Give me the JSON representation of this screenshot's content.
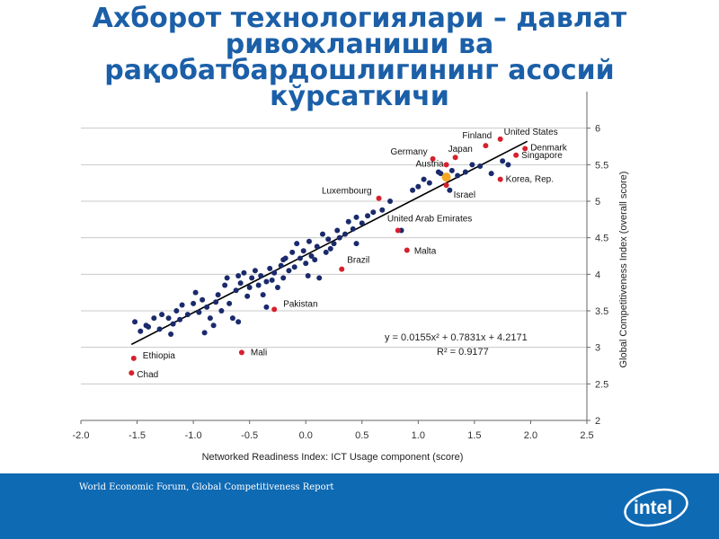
{
  "slide": {
    "title": "Ахборот технологиялари – давлат ривожланиши ва рақобатбардошлигининг асосий кўрсаткичи",
    "source": "World Economic Forum, Global Competitiveness Report",
    "logo_text": "intel"
  },
  "colors": {
    "title": "#1b5fa8",
    "footer": "#0f6ab4",
    "dot": "#1a2a6c",
    "labeled_dot": "#d6202e",
    "highlight_dot": "#f5a623",
    "trendline": "#000000"
  },
  "chart_data": {
    "type": "scatter",
    "xlabel": "Networked Readiness Index: ICT Usage component (score)",
    "ylabel": "Global Competitiveness Index (overall score)",
    "xlim": [
      -2.0,
      2.5
    ],
    "ylim": [
      2,
      6.5
    ],
    "xticks": [
      "-2.0",
      "-1.5",
      "-1.0",
      "-0.5",
      "0.0",
      "0.5",
      "1.0",
      "1.5",
      "2.0",
      "2.5"
    ],
    "yticks": [
      "2",
      "2.5",
      "3",
      "3.5",
      "4",
      "4.5",
      "5",
      "5.5",
      "6"
    ],
    "grid": "horizontal",
    "y_axis_side": "right",
    "equation": "y = 0.0155x² + 0.7831x + 4.2171",
    "r_squared": "R² = 0.9177",
    "trend": {
      "a": 0.0155,
      "b": 0.7831,
      "c": 4.2171,
      "x_range": [
        -1.55,
        1.97
      ]
    },
    "labeled_points": [
      {
        "label": "United States",
        "x": 1.73,
        "y": 5.85
      },
      {
        "label": "Finland",
        "x": 1.6,
        "y": 5.76
      },
      {
        "label": "Denmark",
        "x": 1.95,
        "y": 5.72
      },
      {
        "label": "Germany",
        "x": 1.13,
        "y": 5.58
      },
      {
        "label": "Japan",
        "x": 1.33,
        "y": 5.6
      },
      {
        "label": "Austria",
        "x": 1.25,
        "y": 5.5
      },
      {
        "label": "Singapore",
        "x": 1.87,
        "y": 5.63
      },
      {
        "label": "Korea, Rep.",
        "x": 1.73,
        "y": 5.3
      },
      {
        "label": "Israel",
        "x": 1.25,
        "y": 5.22
      },
      {
        "label": "Luxembourg",
        "x": 0.65,
        "y": 5.04
      },
      {
        "label": "United Arab Emirates",
        "x": 0.82,
        "y": 4.6
      },
      {
        "label": "Malta",
        "x": 0.9,
        "y": 4.33
      },
      {
        "label": "Brazil",
        "x": 0.32,
        "y": 4.07
      },
      {
        "label": "Pakistan",
        "x": -0.28,
        "y": 3.52
      },
      {
        "label": "Mali",
        "x": -0.57,
        "y": 2.93
      },
      {
        "label": "Ethiopia",
        "x": -1.53,
        "y": 2.85
      },
      {
        "label": "Chad",
        "x": -1.55,
        "y": 2.65
      }
    ],
    "highlight_point": {
      "x": 1.25,
      "y": 5.33
    },
    "points": [
      [
        -1.52,
        3.35
      ],
      [
        -1.47,
        3.22
      ],
      [
        -1.42,
        3.3
      ],
      [
        -1.35,
        3.4
      ],
      [
        -1.3,
        3.25
      ],
      [
        -1.28,
        3.45
      ],
      [
        -1.22,
        3.4
      ],
      [
        -1.18,
        3.32
      ],
      [
        -1.15,
        3.5
      ],
      [
        -1.12,
        3.38
      ],
      [
        -1.1,
        3.58
      ],
      [
        -1.05,
        3.45
      ],
      [
        -1.0,
        3.6
      ],
      [
        -0.98,
        3.75
      ],
      [
        -0.95,
        3.48
      ],
      [
        -0.92,
        3.65
      ],
      [
        -0.88,
        3.55
      ],
      [
        -0.85,
        3.4
      ],
      [
        -0.82,
        3.3
      ],
      [
        -0.8,
        3.62
      ],
      [
        -0.78,
        3.72
      ],
      [
        -0.75,
        3.5
      ],
      [
        -0.72,
        3.85
      ],
      [
        -0.7,
        3.95
      ],
      [
        -0.68,
        3.6
      ],
      [
        -0.65,
        3.4
      ],
      [
        -0.62,
        3.78
      ],
      [
        -0.6,
        3.98
      ],
      [
        -0.58,
        3.88
      ],
      [
        -0.55,
        4.02
      ],
      [
        -0.52,
        3.7
      ],
      [
        -0.5,
        3.82
      ],
      [
        -0.48,
        3.95
      ],
      [
        -0.45,
        4.05
      ],
      [
        -0.42,
        3.85
      ],
      [
        -0.4,
        3.98
      ],
      [
        -0.38,
        3.72
      ],
      [
        -0.35,
        3.9
      ],
      [
        -0.32,
        4.08
      ],
      [
        -0.3,
        3.92
      ],
      [
        -0.28,
        4.02
      ],
      [
        -0.25,
        3.82
      ],
      [
        -0.22,
        4.12
      ],
      [
        -0.2,
        3.95
      ],
      [
        -0.18,
        4.22
      ],
      [
        -0.15,
        4.05
      ],
      [
        -0.12,
        4.3
      ],
      [
        -0.1,
        4.1
      ],
      [
        -0.08,
        4.42
      ],
      [
        -0.05,
        4.22
      ],
      [
        -0.02,
        4.32
      ],
      [
        0.0,
        4.15
      ],
      [
        0.03,
        4.45
      ],
      [
        0.05,
        4.25
      ],
      [
        0.08,
        4.2
      ],
      [
        0.1,
        4.38
      ],
      [
        0.12,
        3.95
      ],
      [
        0.15,
        4.55
      ],
      [
        0.18,
        4.3
      ],
      [
        0.2,
        4.48
      ],
      [
        0.22,
        4.35
      ],
      [
        0.25,
        4.42
      ],
      [
        0.28,
        4.6
      ],
      [
        0.3,
        4.5
      ],
      [
        0.35,
        4.55
      ],
      [
        0.38,
        4.72
      ],
      [
        0.42,
        4.62
      ],
      [
        0.45,
        4.78
      ],
      [
        0.5,
        4.7
      ],
      [
        0.55,
        4.8
      ],
      [
        0.6,
        4.85
      ],
      [
        0.68,
        4.88
      ],
      [
        0.75,
        5.0
      ],
      [
        0.85,
        4.6
      ],
      [
        0.95,
        5.15
      ],
      [
        1.0,
        5.2
      ],
      [
        1.05,
        5.3
      ],
      [
        1.1,
        5.25
      ],
      [
        1.18,
        5.4
      ],
      [
        1.28,
        5.15
      ],
      [
        1.35,
        5.35
      ],
      [
        1.42,
        5.4
      ],
      [
        1.48,
        5.5
      ],
      [
        1.55,
        5.48
      ],
      [
        1.65,
        5.38
      ],
      [
        1.75,
        5.55
      ],
      [
        1.8,
        5.5
      ],
      [
        1.2,
        5.38
      ],
      [
        1.3,
        5.42
      ],
      [
        -0.9,
        3.2
      ],
      [
        -0.6,
        3.35
      ],
      [
        -1.4,
        3.28
      ],
      [
        -0.35,
        3.55
      ],
      [
        -1.2,
        3.18
      ],
      [
        0.02,
        3.98
      ],
      [
        -0.2,
        4.2
      ],
      [
        0.45,
        4.42
      ]
    ]
  }
}
